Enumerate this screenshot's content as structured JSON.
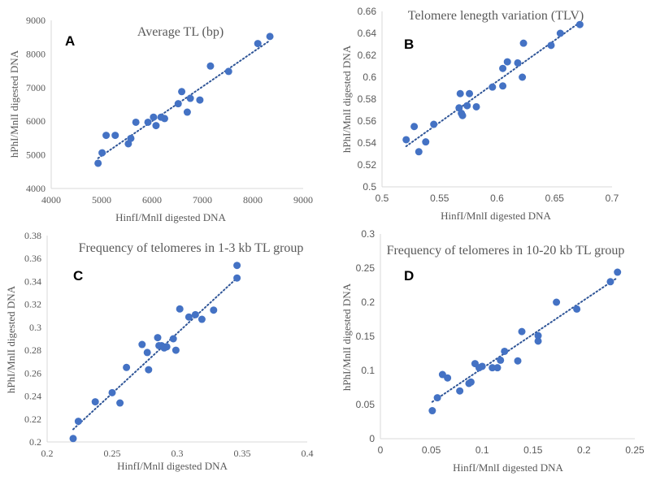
{
  "colors": {
    "marker": "#4472C4",
    "trendline": "#2F5597",
    "axis": "#D9D9D9",
    "text": "#595959"
  },
  "chart_data": [
    {
      "type": "scatter",
      "panel_letter": "A",
      "title": "Average TL (bp)",
      "xlabel": "HinfI/MnlI digested DNA",
      "ylabel": "hPhI/MnlI digested DNA",
      "xlim": [
        4000,
        9000
      ],
      "ylim": [
        4000,
        9000
      ],
      "xticks": [
        "4000",
        "5000",
        "6000",
        "7000",
        "8000",
        "9000"
      ],
      "yticks": [
        "4000",
        "5000",
        "6000",
        "7000",
        "8000",
        "9000"
      ],
      "trendline": "linear, dotted",
      "grid": false,
      "points": [
        [
          4930,
          4750
        ],
        [
          5010,
          5060
        ],
        [
          5090,
          5580
        ],
        [
          5270,
          5580
        ],
        [
          5530,
          5330
        ],
        [
          5580,
          5490
        ],
        [
          5680,
          5970
        ],
        [
          5920,
          5970
        ],
        [
          6030,
          6120
        ],
        [
          6080,
          5870
        ],
        [
          6180,
          6120
        ],
        [
          6250,
          6080
        ],
        [
          6520,
          6520
        ],
        [
          6590,
          6880
        ],
        [
          6700,
          6270
        ],
        [
          6760,
          6680
        ],
        [
          6950,
          6630
        ],
        [
          7160,
          7640
        ],
        [
          7520,
          7480
        ],
        [
          8100,
          8310
        ],
        [
          8340,
          8520
        ]
      ],
      "trend": [
        [
          4930,
          4900
        ],
        [
          8340,
          8400
        ]
      ]
    },
    {
      "type": "scatter",
      "panel_letter": "B",
      "title": "Telomere lenegth variation (TLV)",
      "xlabel": "HinfI/MnlI digested DNA",
      "ylabel": "hPhI/MnlI digested DNA",
      "xlim": [
        0.5,
        0.7
      ],
      "ylim": [
        0.5,
        0.66
      ],
      "xticks": [
        "0.5",
        "0.55",
        "0.6",
        "0.65",
        "0.7"
      ],
      "yticks": [
        "0.5",
        "0.52",
        "0.54",
        "0.56",
        "0.58",
        "0.6",
        "0.62",
        "0.64",
        "0.66"
      ],
      "trendline": "linear, dotted",
      "grid": false,
      "points": [
        [
          0.521,
          0.543
        ],
        [
          0.528,
          0.555
        ],
        [
          0.532,
          0.532
        ],
        [
          0.538,
          0.541
        ],
        [
          0.545,
          0.557
        ],
        [
          0.567,
          0.572
        ],
        [
          0.568,
          0.585
        ],
        [
          0.569,
          0.567
        ],
        [
          0.57,
          0.565
        ],
        [
          0.574,
          0.574
        ],
        [
          0.576,
          0.585
        ],
        [
          0.582,
          0.573
        ],
        [
          0.596,
          0.591
        ],
        [
          0.605,
          0.592
        ],
        [
          0.605,
          0.608
        ],
        [
          0.609,
          0.614
        ],
        [
          0.618,
          0.613
        ],
        [
          0.622,
          0.6
        ],
        [
          0.623,
          0.631
        ],
        [
          0.647,
          0.629
        ],
        [
          0.655,
          0.64
        ],
        [
          0.672,
          0.648
        ]
      ],
      "trend": [
        [
          0.521,
          0.537
        ],
        [
          0.672,
          0.65
        ]
      ]
    },
    {
      "type": "scatter",
      "panel_letter": "C",
      "title": "Frequency of telomeres in 1-3 kb TL group",
      "xlabel": "HinfI/MnlI digested DNA",
      "ylabel": "hPhI/MnlI digested DNA",
      "xlim": [
        0.2,
        0.4
      ],
      "ylim": [
        0.2,
        0.38
      ],
      "xticks": [
        "0.2",
        "0.25",
        "0.3",
        "0.35",
        "0.4"
      ],
      "yticks": [
        "0.2",
        "0.22",
        "0.24",
        "0.26",
        "0.28",
        "0.3",
        "0.32",
        "0.34",
        "0.36",
        "0.38"
      ],
      "trendline": "linear, dotted",
      "grid": false,
      "points": [
        [
          0.22,
          0.203
        ],
        [
          0.224,
          0.218
        ],
        [
          0.237,
          0.235
        ],
        [
          0.25,
          0.243
        ],
        [
          0.256,
          0.234
        ],
        [
          0.261,
          0.265
        ],
        [
          0.273,
          0.285
        ],
        [
          0.277,
          0.278
        ],
        [
          0.278,
          0.263
        ],
        [
          0.285,
          0.291
        ],
        [
          0.286,
          0.284
        ],
        [
          0.288,
          0.284
        ],
        [
          0.29,
          0.282
        ],
        [
          0.292,
          0.283
        ],
        [
          0.297,
          0.29
        ],
        [
          0.299,
          0.28
        ],
        [
          0.302,
          0.316
        ],
        [
          0.309,
          0.309
        ],
        [
          0.314,
          0.311
        ],
        [
          0.319,
          0.307
        ],
        [
          0.328,
          0.315
        ],
        [
          0.346,
          0.354
        ],
        [
          0.346,
          0.343
        ]
      ],
      "trend": [
        [
          0.22,
          0.211
        ],
        [
          0.346,
          0.343
        ]
      ]
    },
    {
      "type": "scatter",
      "panel_letter": "D",
      "title": "Frequency of telomeres in 10-20 kb TL group",
      "xlabel": "HinfI/MnlI digested DNA",
      "ylabel": "hPhI/MnlI digested DNA",
      "xlim": [
        0,
        0.25
      ],
      "ylim": [
        0,
        0.3
      ],
      "xticks": [
        "0",
        "0.05",
        "0.1",
        "0.15",
        "0.2",
        "0.25"
      ],
      "yticks": [
        "0",
        "0.05",
        "0.1",
        "0.15",
        "0.2",
        "0.25",
        "0.3"
      ],
      "trendline": "linear, dotted",
      "grid": false,
      "points": [
        [
          0.051,
          0.041
        ],
        [
          0.056,
          0.06
        ],
        [
          0.061,
          0.094
        ],
        [
          0.066,
          0.089
        ],
        [
          0.078,
          0.07
        ],
        [
          0.087,
          0.081
        ],
        [
          0.089,
          0.083
        ],
        [
          0.093,
          0.11
        ],
        [
          0.097,
          0.104
        ],
        [
          0.1,
          0.106
        ],
        [
          0.11,
          0.104
        ],
        [
          0.115,
          0.104
        ],
        [
          0.118,
          0.115
        ],
        [
          0.122,
          0.128
        ],
        [
          0.135,
          0.114
        ],
        [
          0.139,
          0.157
        ],
        [
          0.155,
          0.143
        ],
        [
          0.155,
          0.151
        ],
        [
          0.173,
          0.2
        ],
        [
          0.193,
          0.19
        ],
        [
          0.226,
          0.23
        ],
        [
          0.233,
          0.244
        ]
      ],
      "trend": [
        [
          0.051,
          0.054
        ],
        [
          0.233,
          0.236
        ]
      ]
    }
  ]
}
